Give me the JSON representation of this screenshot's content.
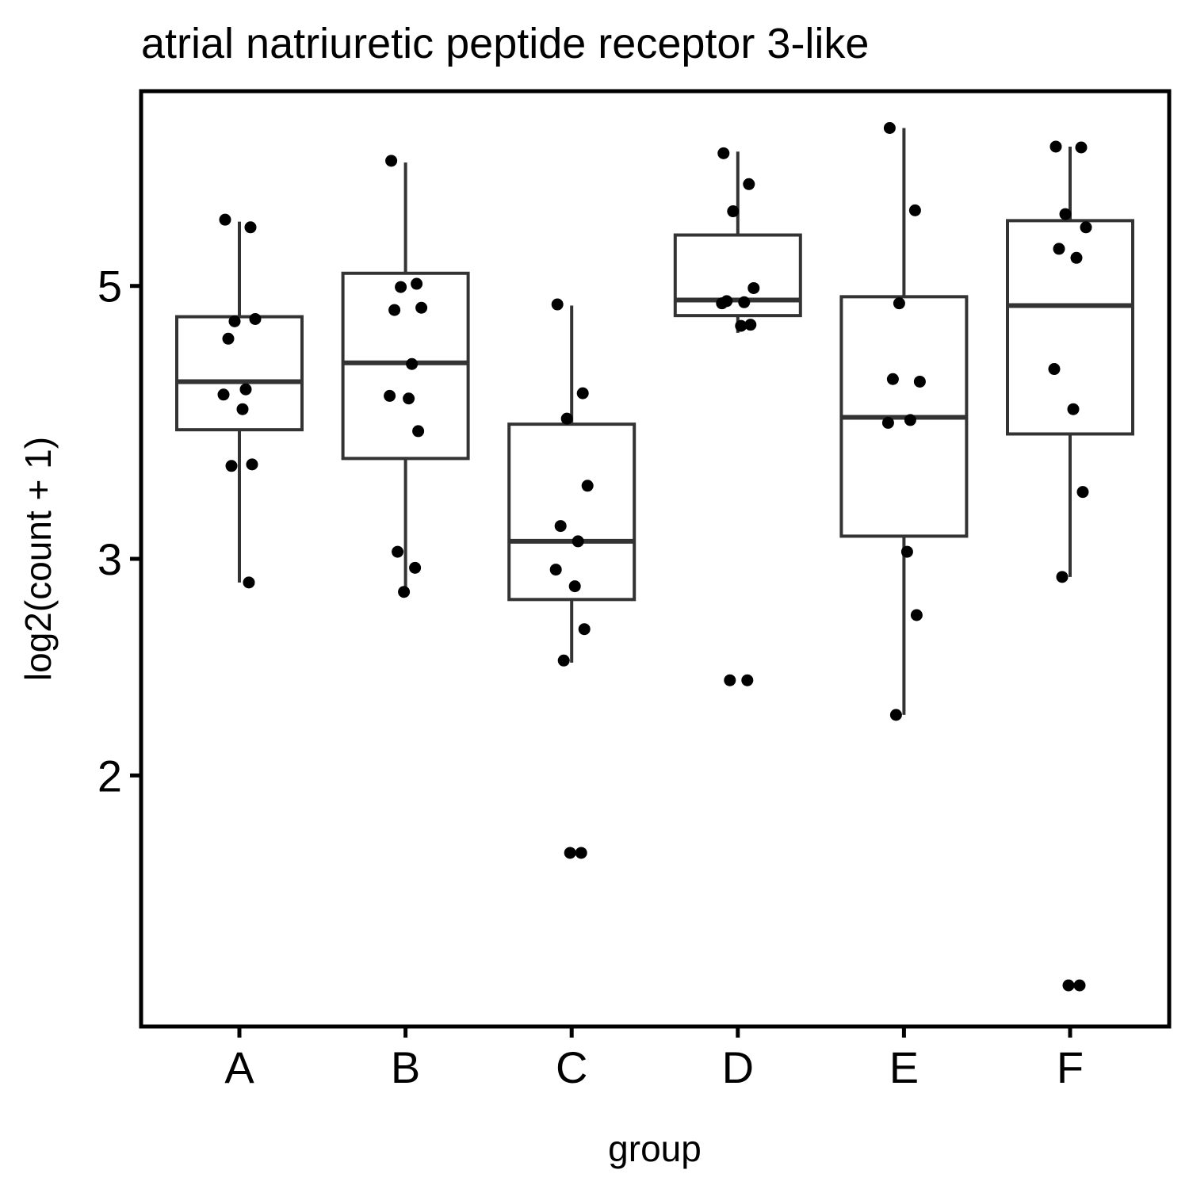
{
  "chart_data": {
    "type": "box",
    "title": "atrial natriuretic peptide receptor 3-like",
    "xlabel": "group",
    "ylabel": "log2(count + 1)",
    "scale": "log2",
    "ylim": [
      1.25,
      7.2
    ],
    "yticks": [
      2,
      3,
      5
    ],
    "categories": [
      "A",
      "B",
      "C",
      "D",
      "E",
      "F"
    ],
    "boxes": [
      {
        "group": "A",
        "whisker_low": 2.87,
        "q1": 3.82,
        "median": 4.18,
        "q3": 4.72,
        "whisker_high": 5.64
      },
      {
        "group": "B",
        "whisker_low": 2.82,
        "q1": 3.62,
        "median": 4.33,
        "q3": 5.12,
        "whisker_high": 6.3
      },
      {
        "group": "C",
        "whisker_low": 2.47,
        "q1": 2.78,
        "median": 3.1,
        "q3": 3.86,
        "whisker_high": 4.82
      },
      {
        "group": "D",
        "whisker_low": 4.58,
        "q1": 4.73,
        "median": 4.87,
        "q3": 5.5,
        "whisker_high": 6.43
      },
      {
        "group": "E",
        "whisker_low": 2.24,
        "q1": 3.13,
        "median": 3.91,
        "q3": 4.9,
        "whisker_high": 6.72
      },
      {
        "group": "F",
        "whisker_low": 2.9,
        "q1": 3.79,
        "median": 4.82,
        "q3": 5.65,
        "whisker_high": 6.49
      }
    ],
    "points": [
      {
        "group": "A",
        "values": [
          5.66,
          5.58,
          4.68,
          4.7,
          4.53,
          4.12,
          4.08,
          3.97,
          3.58,
          3.57,
          2.87
        ]
      },
      {
        "group": "B",
        "values": [
          6.32,
          5.02,
          4.99,
          4.8,
          4.78,
          4.32,
          4.07,
          4.05,
          3.81,
          3.04,
          2.95,
          2.82
        ]
      },
      {
        "group": "C",
        "values": [
          4.83,
          4.09,
          3.9,
          3.44,
          3.19,
          3.1,
          2.94,
          2.85,
          2.63,
          2.48,
          1.73,
          1.73
        ]
      },
      {
        "group": "D",
        "values": [
          6.41,
          6.05,
          5.75,
          4.98,
          4.86,
          4.85,
          4.84,
          4.64,
          4.65,
          2.39,
          2.39
        ]
      },
      {
        "group": "E",
        "values": [
          6.72,
          5.76,
          4.84,
          4.18,
          4.2,
          3.89,
          3.87,
          3.04,
          2.7,
          2.24
        ]
      },
      {
        "group": "F",
        "values": [
          6.49,
          6.48,
          5.72,
          5.58,
          5.36,
          5.27,
          4.28,
          3.97,
          3.4,
          2.9,
          1.35,
          1.35
        ]
      }
    ],
    "grid": false,
    "legend": "none"
  }
}
